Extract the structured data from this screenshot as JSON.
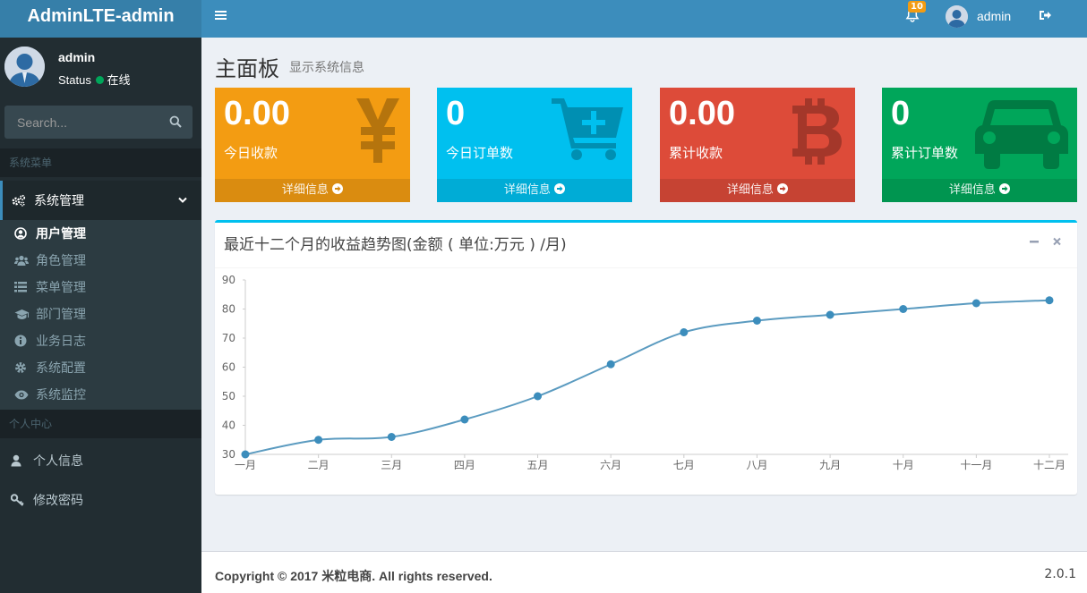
{
  "app": {
    "logo": "AdminLTE-admin"
  },
  "navbar": {
    "notifications_count": "10",
    "user_name": "admin"
  },
  "sidebar": {
    "user_name": "admin",
    "status_label": "Status",
    "status_text": "在线",
    "search_placeholder": "Search...",
    "header_system": "系统菜单",
    "system_group": "系统管理",
    "system_items": [
      {
        "label": "用户管理",
        "icon": "user-circle-icon"
      },
      {
        "label": "角色管理",
        "icon": "users-icon"
      },
      {
        "label": "菜单管理",
        "icon": "list-icon"
      },
      {
        "label": "部门管理",
        "icon": "graduation-cap-icon"
      },
      {
        "label": "业务日志",
        "icon": "info-circle-icon"
      },
      {
        "label": "系统配置",
        "icon": "gear-icon"
      },
      {
        "label": "系统监控",
        "icon": "eye-icon"
      }
    ],
    "header_personal": "个人中心",
    "personal_items": [
      {
        "label": "个人信息",
        "icon": "user-icon"
      },
      {
        "label": "修改密码",
        "icon": "key-icon"
      }
    ]
  },
  "page": {
    "title": "主面板",
    "subtitle": "显示系统信息"
  },
  "stat_boxes": [
    {
      "value": "0.00",
      "label": "今日收款",
      "footer": "详细信息",
      "color": "#f39c12",
      "icon": "yen-icon"
    },
    {
      "value": "0",
      "label": "今日订单数",
      "footer": "详细信息",
      "color": "#00c0ef",
      "icon": "cart-plus-icon"
    },
    {
      "value": "0.00",
      "label": "累计收款",
      "footer": "详细信息",
      "color": "#dd4b39",
      "icon": "bitcoin-icon"
    },
    {
      "value": "0",
      "label": "累计订单数",
      "footer": "详细信息",
      "color": "#00a65a",
      "icon": "car-icon"
    }
  ],
  "chart_box": {
    "title": "最近十二个月的收益趋势图(金额 ( 单位:万元 ) /月)"
  },
  "chart_data": {
    "type": "line",
    "categories": [
      "一月",
      "二月",
      "三月",
      "四月",
      "五月",
      "六月",
      "七月",
      "八月",
      "九月",
      "十月",
      "十一月",
      "十二月"
    ],
    "values": [
      30,
      35,
      36,
      42,
      50,
      61,
      72,
      76,
      78,
      80,
      82,
      83
    ],
    "ylim": [
      30,
      90
    ],
    "yticks": [
      30,
      40,
      50,
      60,
      70,
      80,
      90
    ],
    "line_color": "#5b9bc0",
    "point_color": "#3c8dbc"
  },
  "footer": {
    "copyright": "Copyright © 2017 米粒电商. All rights reserved.",
    "version": "2.0.1"
  }
}
